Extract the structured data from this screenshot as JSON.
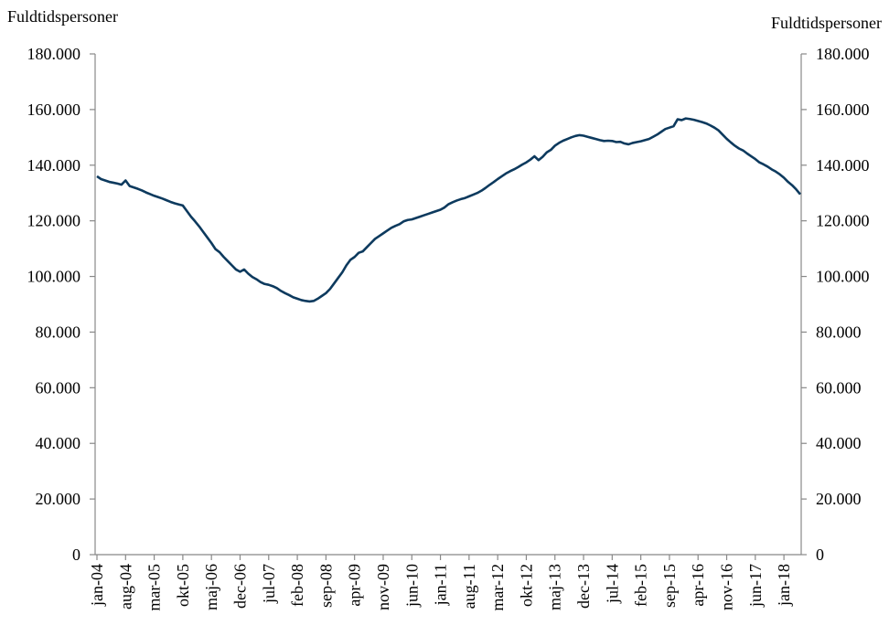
{
  "chart_data": {
    "type": "line",
    "y_label": "Fuldtidspersoner",
    "y2_label": "Fuldtidspersoner",
    "categories": [
      "jan-04",
      null,
      null,
      null,
      null,
      null,
      null,
      "aug-04",
      null,
      null,
      null,
      null,
      null,
      null,
      "mar-05",
      null,
      null,
      null,
      null,
      null,
      null,
      "okt-05",
      null,
      null,
      null,
      null,
      null,
      null,
      "maj-06",
      null,
      null,
      null,
      null,
      null,
      null,
      "dec-06",
      null,
      null,
      null,
      null,
      null,
      null,
      "jul-07",
      null,
      null,
      null,
      null,
      null,
      null,
      "feb-08",
      null,
      null,
      null,
      null,
      null,
      null,
      "sep-08",
      null,
      null,
      null,
      null,
      null,
      null,
      "apr-09",
      null,
      null,
      null,
      null,
      null,
      null,
      "nov-09",
      null,
      null,
      null,
      null,
      null,
      null,
      "jun-10",
      null,
      null,
      null,
      null,
      null,
      null,
      "jan-11",
      null,
      null,
      null,
      null,
      null,
      null,
      "aug-11",
      null,
      null,
      null,
      null,
      null,
      null,
      "mar-12",
      null,
      null,
      null,
      null,
      null,
      null,
      "okt-12",
      null,
      null,
      null,
      null,
      null,
      null,
      "maj-13",
      null,
      null,
      null,
      null,
      null,
      null,
      "dec-13",
      null,
      null,
      null,
      null,
      null,
      null,
      "jul-14",
      null,
      null,
      null,
      null,
      null,
      null,
      "feb-15",
      null,
      null,
      null,
      null,
      null,
      null,
      "sep-15",
      null,
      null,
      null,
      null,
      null,
      null,
      "apr-16",
      null,
      null,
      null,
      null,
      null,
      null,
      "nov-16",
      null,
      null,
      null,
      null,
      null,
      null,
      "jun-17",
      null,
      null,
      null,
      null,
      null,
      null,
      "jan-18",
      null,
      null,
      null,
      null
    ],
    "series": [
      {
        "color": "#0d3a5e",
        "values": [
          136000,
          135000,
          134500,
          134000,
          133700,
          133400,
          133000,
          134500,
          132500,
          132000,
          131500,
          130900,
          130200,
          129600,
          129000,
          128500,
          128000,
          127400,
          126800,
          126300,
          125900,
          125500,
          123500,
          121500,
          119800,
          118000,
          116000,
          114000,
          112000,
          109800,
          108700,
          107000,
          105500,
          104000,
          102500,
          101700,
          102500,
          101000,
          99800,
          99000,
          98000,
          97300,
          97000,
          96500,
          95800,
          94800,
          94000,
          93300,
          92500,
          92000,
          91500,
          91200,
          91000,
          91200,
          92000,
          93000,
          94000,
          95500,
          97500,
          99500,
          101500,
          104000,
          106000,
          107000,
          108500,
          109000,
          110500,
          112000,
          113500,
          114500,
          115500,
          116500,
          117500,
          118200,
          118800,
          119800,
          120300,
          120500,
          121000,
          121500,
          122000,
          122500,
          123000,
          123500,
          124000,
          124800,
          126000,
          126700,
          127300,
          127800,
          128200,
          128800,
          129400,
          130000,
          130800,
          131800,
          132900,
          133900,
          135000,
          136000,
          137000,
          137800,
          138500,
          139300,
          140200,
          141000,
          142000,
          143200,
          141800,
          143000,
          144600,
          145500,
          147000,
          148000,
          148800,
          149400,
          150000,
          150500,
          150800,
          150600,
          150200,
          149800,
          149400,
          149000,
          148700,
          148800,
          148700,
          148300,
          148400,
          147800,
          147500,
          148000,
          148300,
          148600,
          149000,
          149400,
          150200,
          151000,
          152000,
          153000,
          153500,
          154000,
          156500,
          156200,
          156800,
          156600,
          156300,
          155900,
          155500,
          155000,
          154300,
          153500,
          152500,
          151000,
          149500,
          148200,
          147000,
          146000,
          145300,
          144200,
          143200,
          142200,
          141000,
          140300,
          139500,
          138500,
          137700,
          136700,
          135500,
          134000,
          132800,
          131300,
          129500
        ]
      }
    ],
    "ylim": [
      0,
      180000
    ],
    "yticks": [
      {
        "value": 0,
        "label": "0"
      },
      {
        "value": 20000,
        "label": "20.000"
      },
      {
        "value": 40000,
        "label": "40.000"
      },
      {
        "value": 60000,
        "label": "60.000"
      },
      {
        "value": 80000,
        "label": "80.000"
      },
      {
        "value": 100000,
        "label": "100.000"
      },
      {
        "value": 120000,
        "label": "120.000"
      },
      {
        "value": 140000,
        "label": "140.000"
      },
      {
        "value": 160000,
        "label": "160.000"
      },
      {
        "value": 180000,
        "label": "180.000"
      }
    ],
    "y2lim": [
      0,
      180000
    ],
    "y2ticks": [
      {
        "value": 0,
        "label": "0"
      },
      {
        "value": 20000,
        "label": "20.000"
      },
      {
        "value": 40000,
        "label": "40.000"
      },
      {
        "value": 60000,
        "label": "60.000"
      },
      {
        "value": 80000,
        "label": "80.000"
      },
      {
        "value": 100000,
        "label": "100.000"
      },
      {
        "value": 120000,
        "label": "120.000"
      },
      {
        "value": 140000,
        "label": "140.000"
      },
      {
        "value": 160000,
        "label": "160.000"
      },
      {
        "value": 180000,
        "label": "180.000"
      }
    ],
    "grid": false
  }
}
